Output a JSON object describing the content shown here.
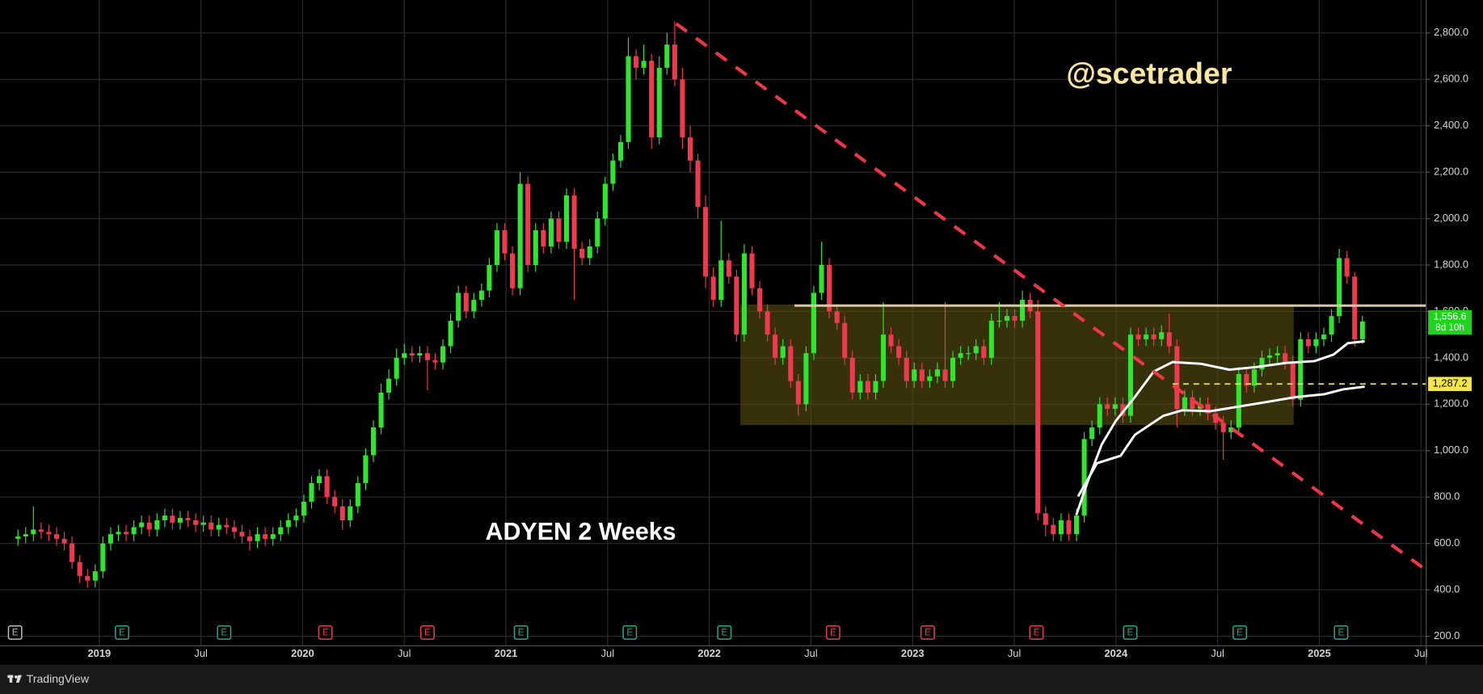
{
  "chart_data": {
    "type": "candlestick",
    "title": "ADYEN 2 Weeks",
    "watermark": "@scetrader",
    "xlim": [
      2018.549,
      2025.526
    ],
    "ylim": [
      159,
      2942
    ],
    "xticks": [
      {
        "value": 2019,
        "label": "2019"
      },
      {
        "value": 2019.5,
        "label": "Jul"
      },
      {
        "value": 2020,
        "label": "2020"
      },
      {
        "value": 2020.5,
        "label": "Jul"
      },
      {
        "value": 2021,
        "label": "2021"
      },
      {
        "value": 2021.5,
        "label": "Jul"
      },
      {
        "value": 2022,
        "label": "2022"
      },
      {
        "value": 2022.5,
        "label": "Jul"
      },
      {
        "value": 2023,
        "label": "2023"
      },
      {
        "value": 2023.5,
        "label": "Jul"
      },
      {
        "value": 2024,
        "label": "2024"
      },
      {
        "value": 2024.5,
        "label": "Jul"
      },
      {
        "value": 2025,
        "label": "2025"
      },
      {
        "value": 2025.5,
        "label": "Jul"
      }
    ],
    "yticks": [
      {
        "value": 200,
        "label": "200.0"
      },
      {
        "value": 400,
        "label": "400.0"
      },
      {
        "value": 600,
        "label": "600.0"
      },
      {
        "value": 800,
        "label": "800.0"
      },
      {
        "value": 1000,
        "label": "1,000.0"
      },
      {
        "value": 1200,
        "label": "1,200.0"
      },
      {
        "value": 1400,
        "label": "1,400.0"
      },
      {
        "value": 1600,
        "label": "1,600.0"
      },
      {
        "value": 1800,
        "label": "1,800.0"
      },
      {
        "value": 2000,
        "label": "2,000.0"
      },
      {
        "value": 2200,
        "label": "2,200.0"
      },
      {
        "value": 2400,
        "label": "2,400.0"
      },
      {
        "value": 2600,
        "label": "2,600.0"
      },
      {
        "value": 2800,
        "label": "2,800.0"
      }
    ],
    "grid": true,
    "up_color": "#2ee62e",
    "down_color": "#f0384f",
    "x": [
      2018.6,
      2018.638,
      2018.676,
      2018.714,
      2018.752,
      2018.79,
      2018.828,
      2018.866,
      2018.904,
      2018.942,
      2018.98,
      2019.018,
      2019.056,
      2019.094,
      2019.132,
      2019.17,
      2019.208,
      2019.246,
      2019.284,
      2019.322,
      2019.36,
      2019.398,
      2019.436,
      2019.474,
      2019.512,
      2019.55,
      2019.588,
      2019.626,
      2019.664,
      2019.702,
      2019.74,
      2019.778,
      2019.816,
      2019.854,
      2019.892,
      2019.93,
      2019.968,
      2020.006,
      2020.044,
      2020.082,
      2020.12,
      2020.158,
      2020.196,
      2020.234,
      2020.272,
      2020.31,
      2020.348,
      2020.386,
      2020.424,
      2020.462,
      2020.5,
      2020.538,
      2020.576,
      2020.614,
      2020.652,
      2020.69,
      2020.728,
      2020.766,
      2020.804,
      2020.842,
      2020.88,
      2020.918,
      2020.956,
      2020.994,
      2021.032,
      2021.07,
      2021.108,
      2021.146,
      2021.184,
      2021.222,
      2021.26,
      2021.298,
      2021.336,
      2021.374,
      2021.412,
      2021.45,
      2021.488,
      2021.526,
      2021.564,
      2021.602,
      2021.64,
      2021.678,
      2021.716,
      2021.754,
      2021.792,
      2021.83,
      2021.868,
      2021.906,
      2021.944,
      2021.982,
      2022.02,
      2022.058,
      2022.096,
      2022.134,
      2022.172,
      2022.21,
      2022.248,
      2022.286,
      2022.324,
      2022.362,
      2022.4,
      2022.438,
      2022.476,
      2022.514,
      2022.552,
      2022.59,
      2022.628,
      2022.666,
      2022.704,
      2022.742,
      2022.78,
      2022.818,
      2022.856,
      2022.894,
      2022.932,
      2022.97,
      2023.008,
      2023.046,
      2023.084,
      2023.122,
      2023.16,
      2023.198,
      2023.236,
      2023.274,
      2023.312,
      2023.35,
      2023.388,
      2023.426,
      2023.464,
      2023.502,
      2023.54,
      2023.578,
      2023.616,
      2023.654,
      2023.692,
      2023.73,
      2023.768,
      2023.806,
      2023.844,
      2023.882,
      2023.92,
      2023.958,
      2023.996,
      2024.034,
      2024.072,
      2024.11,
      2024.148,
      2024.186,
      2024.224,
      2024.262,
      2024.3,
      2024.338,
      2024.376,
      2024.414,
      2024.452,
      2024.49,
      2024.528,
      2024.566,
      2024.604,
      2024.642,
      2024.68,
      2024.718,
      2024.756,
      2024.794,
      2024.832,
      2024.87,
      2024.908,
      2024.946,
      2024.984,
      2025.022,
      2025.06,
      2025.098,
      2025.136,
      2025.174,
      2025.212
    ],
    "open": [
      620,
      630,
      640,
      660,
      650,
      640,
      620,
      600,
      520,
      460,
      440,
      480,
      600,
      640,
      650,
      640,
      670,
      690,
      660,
      700,
      720,
      690,
      710,
      700,
      680,
      690,
      660,
      680,
      670,
      650,
      630,
      610,
      640,
      620,
      640,
      670,
      700,
      720,
      780,
      860,
      890,
      800,
      760,
      700,
      760,
      860,
      980,
      1100,
      1250,
      1310,
      1400,
      1420,
      1410,
      1420,
      1390,
      1380,
      1450,
      1560,
      1680,
      1600,
      1650,
      1690,
      1800,
      1950,
      1850,
      1700,
      2150,
      1800,
      1950,
      1880,
      2000,
      1900,
      2100,
      1870,
      1830,
      1880,
      2000,
      2150,
      2250,
      2330,
      2700,
      2650,
      2680,
      2350,
      2650,
      2750,
      2600,
      2350,
      2250,
      2050,
      1750,
      1650,
      1820,
      1750,
      1500,
      1850,
      1700,
      1600,
      1500,
      1400,
      1450,
      1300,
      1200,
      1420,
      1680,
      1800,
      1600,
      1550,
      1400,
      1250,
      1300,
      1250,
      1300,
      1500,
      1450,
      1400,
      1300,
      1350,
      1300,
      1320,
      1350,
      1300,
      1400,
      1420,
      1420,
      1450,
      1400,
      1560,
      1560,
      1580,
      1560,
      1650,
      1600,
      730,
      680,
      640,
      700,
      640,
      720,
      1050,
      1100,
      1200,
      1180,
      1200,
      1150,
      1500,
      1480,
      1500,
      1480,
      1510,
      1450,
      1180,
      1230,
      1180,
      1200,
      1160,
      1120,
      1080,
      1100,
      1330,
      1280,
      1350,
      1400,
      1410,
      1420,
      1380,
      1220,
      1480,
      1450,
      1480,
      1500,
      1580,
      1830,
      1750,
      1480
    ],
    "high": [
      660,
      670,
      760,
      690,
      680,
      670,
      650,
      630,
      550,
      490,
      510,
      630,
      670,
      680,
      680,
      700,
      720,
      720,
      730,
      750,
      750,
      740,
      740,
      730,
      720,
      720,
      710,
      710,
      700,
      680,
      660,
      670,
      670,
      670,
      700,
      730,
      750,
      810,
      890,
      920,
      920,
      830,
      790,
      790,
      890,
      1010,
      1130,
      1290,
      1350,
      1440,
      1460,
      1450,
      1450,
      1450,
      1420,
      1480,
      1590,
      1710,
      1710,
      1680,
      1720,
      1830,
      1980,
      1980,
      1880,
      2200,
      2180,
      1980,
      1980,
      2030,
      2030,
      2130,
      2130,
      1900,
      1910,
      2030,
      2180,
      2280,
      2360,
      2780,
      2730,
      2750,
      2710,
      2700,
      2800,
      2850,
      2650,
      2400,
      2280,
      2100,
      1790,
      1990,
      1850,
      1780,
      1890,
      1880,
      1730,
      1630,
      1530,
      1480,
      1480,
      1330,
      1450,
      1710,
      1900,
      1830,
      1630,
      1580,
      1430,
      1330,
      1330,
      1330,
      1640,
      1530,
      1480,
      1430,
      1380,
      1380,
      1350,
      1380,
      1640,
      1430,
      1450,
      1450,
      1480,
      1480,
      1590,
      1640,
      1610,
      1610,
      1690,
      1680,
      1650,
      760,
      710,
      730,
      730,
      750,
      1080,
      1130,
      1230,
      1230,
      1230,
      1230,
      1530,
      1530,
      1530,
      1530,
      1540,
      1590,
      1480,
      1260,
      1260,
      1230,
      1230,
      1190,
      1150,
      1130,
      1360,
      1360,
      1380,
      1430,
      1440,
      1450,
      1450,
      1410,
      1510,
      1510,
      1510,
      1530,
      1610,
      1870,
      1860,
      1770,
      1580
    ],
    "low": [
      590,
      600,
      610,
      620,
      610,
      590,
      570,
      490,
      430,
      410,
      410,
      450,
      570,
      610,
      610,
      610,
      640,
      630,
      630,
      670,
      660,
      660,
      670,
      650,
      650,
      630,
      630,
      640,
      620,
      600,
      570,
      580,
      590,
      590,
      610,
      640,
      670,
      690,
      750,
      830,
      770,
      730,
      660,
      670,
      730,
      830,
      950,
      1070,
      1220,
      1280,
      1370,
      1380,
      1380,
      1260,
      1350,
      1350,
      1420,
      1530,
      1570,
      1570,
      1620,
      1660,
      1770,
      1820,
      1670,
      1670,
      1770,
      1770,
      1850,
      1850,
      1870,
      1870,
      1650,
      1800,
      1800,
      1850,
      1970,
      2120,
      2220,
      2300,
      2600,
      2620,
      2300,
      2320,
      2620,
      2570,
      2300,
      2200,
      2000,
      1700,
      1620,
      1620,
      1720,
      1470,
      1470,
      1670,
      1570,
      1470,
      1370,
      1370,
      1270,
      1150,
      1170,
      1390,
      1650,
      1570,
      1520,
      1370,
      1220,
      1220,
      1220,
      1220,
      1270,
      1420,
      1370,
      1270,
      1270,
      1270,
      1270,
      1290,
      1270,
      1270,
      1370,
      1390,
      1390,
      1370,
      1370,
      1530,
      1530,
      1530,
      1530,
      1570,
      700,
      630,
      610,
      610,
      610,
      610,
      690,
      1020,
      1070,
      1150,
      1150,
      1120,
      1120,
      1450,
      1450,
      1450,
      1450,
      1420,
      1100,
      1150,
      1150,
      1150,
      1130,
      1090,
      960,
      1050,
      1070,
      1250,
      1250,
      1320,
      1370,
      1380,
      1350,
      1190,
      1190,
      1420,
      1420,
      1450,
      1470,
      1550,
      1720,
      1450,
      1460
    ],
    "close": [
      630,
      640,
      660,
      650,
      640,
      620,
      600,
      520,
      460,
      440,
      480,
      600,
      640,
      650,
      640,
      670,
      690,
      660,
      700,
      720,
      690,
      710,
      700,
      680,
      690,
      660,
      680,
      670,
      650,
      630,
      610,
      640,
      620,
      640,
      670,
      700,
      720,
      780,
      860,
      890,
      800,
      760,
      700,
      760,
      860,
      980,
      1100,
      1250,
      1310,
      1400,
      1420,
      1410,
      1420,
      1390,
      1380,
      1450,
      1560,
      1680,
      1600,
      1650,
      1690,
      1800,
      1950,
      1850,
      1700,
      2150,
      1800,
      1950,
      1880,
      2000,
      1900,
      2100,
      1870,
      1830,
      1880,
      2000,
      2150,
      2250,
      2330,
      2700,
      2650,
      2680,
      2350,
      2650,
      2750,
      2600,
      2350,
      2250,
      2050,
      1750,
      1650,
      1820,
      1750,
      1500,
      1850,
      1700,
      1600,
      1500,
      1400,
      1450,
      1300,
      1200,
      1420,
      1680,
      1800,
      1600,
      1550,
      1400,
      1250,
      1300,
      1250,
      1300,
      1500,
      1450,
      1400,
      1300,
      1350,
      1300,
      1320,
      1350,
      1300,
      1400,
      1420,
      1420,
      1450,
      1400,
      1560,
      1560,
      1580,
      1560,
      1650,
      1600,
      730,
      680,
      640,
      700,
      640,
      720,
      1050,
      1100,
      1200,
      1180,
      1200,
      1150,
      1500,
      1480,
      1500,
      1480,
      1510,
      1450,
      1180,
      1230,
      1180,
      1200,
      1160,
      1120,
      1080,
      1100,
      1330,
      1280,
      1350,
      1400,
      1410,
      1420,
      1380,
      1220,
      1480,
      1450,
      1480,
      1500,
      1580,
      1830,
      1750,
      1480,
      1556.6
    ],
    "overlays": [
      {
        "color": "#ffffff",
        "x": [
          2023.805,
          2023.86,
          2023.93,
          2024.0,
          2024.093,
          2024.186,
          2024.279,
          2024.419,
          2024.558,
          2024.698,
          2024.837,
          2024.977,
          2025.07,
          2025.14,
          2025.223
        ],
        "values": [
          722,
          864,
          1027,
          1129,
          1231,
          1341,
          1382,
          1374,
          1349,
          1361,
          1378,
          1386,
          1414,
          1463,
          1471
        ]
      },
      {
        "color": "#ffffff",
        "x": [
          2023.814,
          2023.907,
          2024.023,
          2024.093,
          2024.233,
          2024.326,
          2024.465,
          2024.605,
          2024.744,
          2024.884,
          2025.023,
          2025.116,
          2025.223
        ],
        "values": [
          803,
          946,
          978,
          1068,
          1150,
          1174,
          1170,
          1190,
          1210,
          1231,
          1243,
          1264,
          1276
        ]
      }
    ],
    "trendline": {
      "x": [
        2021.837,
        2025.526
      ],
      "y": [
        2840,
        485
      ],
      "color": "#f23645"
    },
    "resistance": {
      "value": 1625,
      "start_x": 2022.419,
      "end_x": 2025.526,
      "color": "#d8c8a0"
    },
    "box": {
      "x": [
        2022.153,
        2024.874
      ],
      "y": [
        1110,
        1630
      ],
      "color": "#5a5213"
    },
    "level": {
      "value": 1287.2,
      "label": "1,287.2",
      "start_x": 2024.279,
      "color": "#f5e642"
    },
    "last_price": {
      "value": 1556.6,
      "label": "1,556.6",
      "countdown": "8d 10h",
      "color": "#1fd31f"
    },
    "events": [
      {
        "x": 2018.586,
        "label": "E",
        "color": "#bbbbbb"
      },
      {
        "x": 2019.112,
        "label": "E",
        "color": "#2aa48c"
      },
      {
        "x": 2019.614,
        "label": "E",
        "color": "#2aa48c"
      },
      {
        "x": 2020.112,
        "label": "E",
        "color": "#e0404f"
      },
      {
        "x": 2020.614,
        "label": "E",
        "color": "#e0404f"
      },
      {
        "x": 2021.074,
        "label": "E",
        "color": "#2aa48c"
      },
      {
        "x": 2021.609,
        "label": "E",
        "color": "#2aa48c"
      },
      {
        "x": 2022.074,
        "label": "E",
        "color": "#2aa48c"
      },
      {
        "x": 2022.609,
        "label": "E",
        "color": "#e0404f"
      },
      {
        "x": 2023.074,
        "label": "E",
        "color": "#e0404f"
      },
      {
        "x": 2023.609,
        "label": "E",
        "color": "#e0404f"
      },
      {
        "x": 2024.07,
        "label": "E",
        "color": "#2aa48c"
      },
      {
        "x": 2024.609,
        "label": "E",
        "color": "#2aa48c"
      },
      {
        "x": 2025.107,
        "label": "E",
        "color": "#2aa48c"
      }
    ]
  },
  "brand": "TradingView"
}
